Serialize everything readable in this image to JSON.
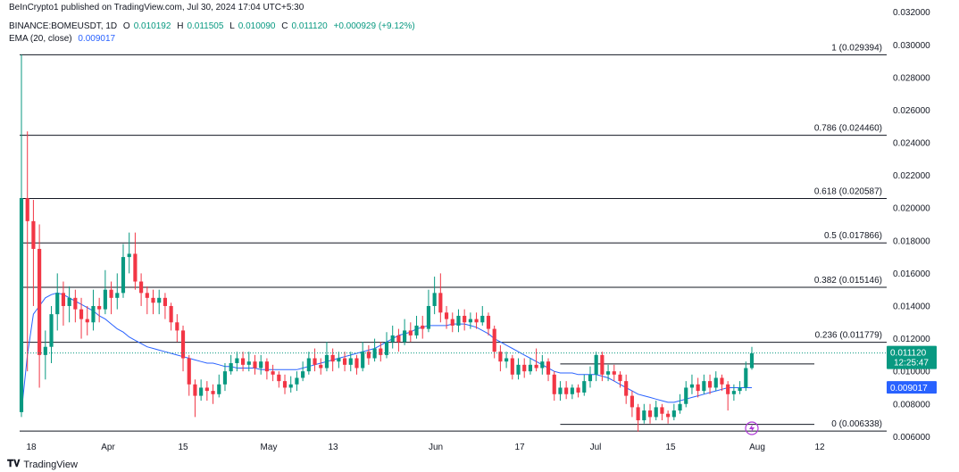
{
  "header": {
    "publisher": "BeInCrypto1 published on TradingView.com, Jul 30, 2024 17:04 UTC+5:30",
    "symbol": "BINANCE:BOMEUSDT, 1D",
    "open_label": "O",
    "open": "0.010192",
    "high_label": "H",
    "high": "0.011505",
    "low_label": "L",
    "low": "0.010090",
    "close_label": "C",
    "close": "0.011120",
    "change": "+0.000929 (+9.12%)",
    "ema_label": "EMA (20, close)",
    "ema_value": "0.009017"
  },
  "footer": {
    "brand": "TradingView"
  },
  "colors": {
    "up": "#089981",
    "down": "#f23645",
    "ema": "#2962ff",
    "line": "#131722",
    "price_tag": "#089981"
  },
  "chart_data": {
    "type": "candlestick",
    "ylim": [
      0.0058,
      0.0322
    ],
    "y_ticks": [
      "0.032000",
      "0.030000",
      "0.028000",
      "0.026000",
      "0.024000",
      "0.022000",
      "0.020000",
      "0.018000",
      "0.016000",
      "0.014000",
      "0.012000",
      "0.010000",
      "0.008000",
      "0.006000"
    ],
    "x_ticks": [
      "18",
      "Apr",
      "15",
      "May",
      "13",
      "Jun",
      "17",
      "Jul",
      "15",
      "Aug",
      "12"
    ],
    "fib_levels": [
      {
        "label": "1 (0.029394)",
        "value": 0.029394
      },
      {
        "label": "0.786 (0.024460)",
        "value": 0.02446
      },
      {
        "label": "0.618 (0.020587)",
        "value": 0.020587
      },
      {
        "label": "0.5 (0.017866)",
        "value": 0.017866
      },
      {
        "label": "0.382 (0.015146)",
        "value": 0.015146
      },
      {
        "label": "0.236 (0.011779)",
        "value": 0.011779
      },
      {
        "label": "0 (0.006338)",
        "value": 0.006338
      }
    ],
    "support_lines": [
      0.01045,
      0.00675
    ],
    "last_price": "0.011120",
    "countdown": "12:25:47",
    "ema_last": "0.009017",
    "candles": [
      [
        0.0075,
        0.0206,
        0.0294,
        0.0072
      ],
      [
        0.0206,
        0.0192,
        0.0247,
        0.01
      ],
      [
        0.0192,
        0.0175,
        0.0205,
        0.014
      ],
      [
        0.0175,
        0.011,
        0.019,
        0.009
      ],
      [
        0.011,
        0.0115,
        0.0125,
        0.0095
      ],
      [
        0.0115,
        0.0135,
        0.014,
        0.0105
      ],
      [
        0.0135,
        0.0148,
        0.016,
        0.0125
      ],
      [
        0.0148,
        0.014,
        0.0155,
        0.0128
      ],
      [
        0.014,
        0.0145,
        0.0152,
        0.013
      ],
      [
        0.0145,
        0.0138,
        0.015,
        0.013
      ],
      [
        0.0138,
        0.0132,
        0.0145,
        0.012
      ],
      [
        0.0132,
        0.013,
        0.014,
        0.0122
      ],
      [
        0.013,
        0.014,
        0.015,
        0.0125
      ],
      [
        0.014,
        0.0138,
        0.0145,
        0.013
      ],
      [
        0.0138,
        0.015,
        0.0162,
        0.0135
      ],
      [
        0.015,
        0.0145,
        0.0155,
        0.0135
      ],
      [
        0.0145,
        0.0148,
        0.016,
        0.0138
      ],
      [
        0.0148,
        0.017,
        0.0178,
        0.0145
      ],
      [
        0.017,
        0.0172,
        0.0185,
        0.016
      ],
      [
        0.0172,
        0.0155,
        0.0185,
        0.015
      ],
      [
        0.0155,
        0.0148,
        0.016,
        0.014
      ],
      [
        0.0148,
        0.0145,
        0.0152,
        0.0135
      ],
      [
        0.0145,
        0.0142,
        0.015,
        0.0135
      ],
      [
        0.0142,
        0.0145,
        0.015,
        0.0135
      ],
      [
        0.0145,
        0.014,
        0.0148,
        0.0132
      ],
      [
        0.014,
        0.013,
        0.0142,
        0.0125
      ],
      [
        0.013,
        0.0125,
        0.0135,
        0.0118
      ],
      [
        0.0125,
        0.0108,
        0.0128,
        0.01
      ],
      [
        0.0108,
        0.0092,
        0.011,
        0.0085
      ],
      [
        0.0092,
        0.0085,
        0.0095,
        0.0072
      ],
      [
        0.0085,
        0.009,
        0.0095,
        0.0082
      ],
      [
        0.009,
        0.0088,
        0.0094,
        0.0082
      ],
      [
        0.0088,
        0.0086,
        0.0092,
        0.008
      ],
      [
        0.0086,
        0.0092,
        0.0098,
        0.0084
      ],
      [
        0.0092,
        0.01,
        0.0105,
        0.0088
      ],
      [
        0.01,
        0.0105,
        0.011,
        0.0098
      ],
      [
        0.0105,
        0.0108,
        0.0112,
        0.01
      ],
      [
        0.0108,
        0.0104,
        0.0112,
        0.01
      ],
      [
        0.0104,
        0.0106,
        0.0112,
        0.01
      ],
      [
        0.0106,
        0.0102,
        0.011,
        0.0098
      ],
      [
        0.0102,
        0.0106,
        0.011,
        0.0098
      ],
      [
        0.0106,
        0.01,
        0.0108,
        0.0095
      ],
      [
        0.01,
        0.0098,
        0.0104,
        0.0094
      ],
      [
        0.0098,
        0.0094,
        0.01,
        0.009
      ],
      [
        0.0094,
        0.009,
        0.0098,
        0.0086
      ],
      [
        0.009,
        0.0092,
        0.0097,
        0.0087
      ],
      [
        0.0092,
        0.0096,
        0.01,
        0.0088
      ],
      [
        0.0096,
        0.01,
        0.0106,
        0.0094
      ],
      [
        0.01,
        0.0108,
        0.0112,
        0.0098
      ],
      [
        0.0108,
        0.0104,
        0.0114,
        0.01
      ],
      [
        0.0104,
        0.0102,
        0.0108,
        0.0098
      ],
      [
        0.0102,
        0.011,
        0.0118,
        0.01
      ],
      [
        0.011,
        0.0106,
        0.0114,
        0.01
      ],
      [
        0.0106,
        0.0108,
        0.0112,
        0.0102
      ],
      [
        0.0108,
        0.0104,
        0.0112,
        0.01
      ],
      [
        0.0104,
        0.0108,
        0.0112,
        0.01
      ],
      [
        0.0108,
        0.0102,
        0.011,
        0.0098
      ],
      [
        0.0102,
        0.0112,
        0.0118,
        0.01
      ],
      [
        0.0112,
        0.0108,
        0.0116,
        0.0104
      ],
      [
        0.0108,
        0.0114,
        0.012,
        0.0106
      ],
      [
        0.0114,
        0.011,
        0.0118,
        0.0106
      ],
      [
        0.011,
        0.0118,
        0.0124,
        0.0108
      ],
      [
        0.0118,
        0.0122,
        0.0128,
        0.0114
      ],
      [
        0.0122,
        0.0118,
        0.0126,
        0.0112
      ],
      [
        0.0118,
        0.0125,
        0.0132,
        0.0116
      ],
      [
        0.0125,
        0.0122,
        0.013,
        0.0118
      ],
      [
        0.0122,
        0.0128,
        0.0134,
        0.012
      ],
      [
        0.0128,
        0.0126,
        0.0134,
        0.012
      ],
      [
        0.0126,
        0.014,
        0.015,
        0.0124
      ],
      [
        0.014,
        0.0148,
        0.0158,
        0.0135
      ],
      [
        0.0148,
        0.0136,
        0.016,
        0.013
      ],
      [
        0.0136,
        0.0132,
        0.014,
        0.0126
      ],
      [
        0.0132,
        0.0128,
        0.0136,
        0.0124
      ],
      [
        0.0128,
        0.0134,
        0.0138,
        0.0124
      ],
      [
        0.0134,
        0.013,
        0.0138,
        0.0125
      ],
      [
        0.013,
        0.0132,
        0.0136,
        0.0126
      ],
      [
        0.0132,
        0.013,
        0.0136,
        0.0126
      ],
      [
        0.013,
        0.0134,
        0.014,
        0.0128
      ],
      [
        0.0134,
        0.0126,
        0.0136,
        0.0122
      ],
      [
        0.0126,
        0.0112,
        0.0128,
        0.0108
      ],
      [
        0.0112,
        0.0106,
        0.0116,
        0.01
      ],
      [
        0.0106,
        0.0108,
        0.0112,
        0.0102
      ],
      [
        0.0108,
        0.0098,
        0.011,
        0.0095
      ],
      [
        0.0098,
        0.0104,
        0.0108,
        0.0095
      ],
      [
        0.0104,
        0.01,
        0.0108,
        0.0096
      ],
      [
        0.01,
        0.0104,
        0.0108,
        0.0098
      ],
      [
        0.0104,
        0.0102,
        0.0114,
        0.01
      ],
      [
        0.0102,
        0.0106,
        0.011,
        0.0098
      ],
      [
        0.0106,
        0.0098,
        0.0108,
        0.0094
      ],
      [
        0.0098,
        0.0086,
        0.01,
        0.0082
      ],
      [
        0.0086,
        0.009,
        0.0094,
        0.0082
      ],
      [
        0.009,
        0.0086,
        0.0094,
        0.0083
      ],
      [
        0.0086,
        0.009,
        0.0092,
        0.0083
      ],
      [
        0.009,
        0.0087,
        0.0092,
        0.0084
      ],
      [
        0.0087,
        0.0094,
        0.0098,
        0.0085
      ],
      [
        0.0094,
        0.0098,
        0.0103,
        0.009
      ],
      [
        0.0098,
        0.011,
        0.0112,
        0.0094
      ],
      [
        0.011,
        0.0098,
        0.0112,
        0.0094
      ],
      [
        0.0098,
        0.01,
        0.0104,
        0.0094
      ],
      [
        0.01,
        0.0098,
        0.0104,
        0.0094
      ],
      [
        0.0098,
        0.0094,
        0.01,
        0.009
      ],
      [
        0.0094,
        0.0085,
        0.0098,
        0.008
      ],
      [
        0.0085,
        0.0078,
        0.0088,
        0.0072
      ],
      [
        0.0078,
        0.007,
        0.008,
        0.0063
      ],
      [
        0.007,
        0.0076,
        0.008,
        0.0068
      ],
      [
        0.0076,
        0.0072,
        0.008,
        0.0068
      ],
      [
        0.0072,
        0.0078,
        0.0082,
        0.007
      ],
      [
        0.0078,
        0.0074,
        0.008,
        0.007
      ],
      [
        0.0074,
        0.0072,
        0.0076,
        0.0068
      ],
      [
        0.0072,
        0.0076,
        0.008,
        0.007
      ],
      [
        0.0076,
        0.008,
        0.0086,
        0.0074
      ],
      [
        0.008,
        0.009,
        0.0094,
        0.0078
      ],
      [
        0.009,
        0.0092,
        0.0098,
        0.0086
      ],
      [
        0.0092,
        0.0088,
        0.0096,
        0.0084
      ],
      [
        0.0088,
        0.0094,
        0.0098,
        0.0086
      ],
      [
        0.0094,
        0.009,
        0.0098,
        0.0086
      ],
      [
        0.009,
        0.0096,
        0.01,
        0.0088
      ],
      [
        0.0096,
        0.0092,
        0.0098,
        0.0088
      ],
      [
        0.0092,
        0.0086,
        0.0094,
        0.0076
      ],
      [
        0.0086,
        0.0088,
        0.0092,
        0.0082
      ],
      [
        0.0088,
        0.009,
        0.0094,
        0.0086
      ],
      [
        0.009,
        0.0102,
        0.0106,
        0.0088
      ],
      [
        0.0102,
        0.0111,
        0.0115,
        0.0101
      ]
    ],
    "ema": [
      0.0075,
      0.011,
      0.0135,
      0.014,
      0.0145,
      0.0147,
      0.0148,
      0.0147,
      0.0145,
      0.0143,
      0.0141,
      0.0139,
      0.0137,
      0.0134,
      0.0132,
      0.0129,
      0.0126,
      0.0124,
      0.0121,
      0.0119,
      0.0117,
      0.0115,
      0.0114,
      0.0113,
      0.0112,
      0.0111,
      0.011,
      0.0109,
      0.0108,
      0.0107,
      0.0106,
      0.0105,
      0.0105,
      0.0104,
      0.0103,
      0.0103,
      0.0102,
      0.0102,
      0.0102,
      0.0102,
      0.0101,
      0.0101,
      0.0101,
      0.0101,
      0.0101,
      0.0101,
      0.0101,
      0.0102,
      0.0103,
      0.0104,
      0.0105,
      0.0106,
      0.0107,
      0.0108,
      0.0109,
      0.011,
      0.0111,
      0.0112,
      0.0113,
      0.0114,
      0.0116,
      0.0118,
      0.012,
      0.0122,
      0.0123,
      0.0124,
      0.0126,
      0.0127,
      0.0128,
      0.0128,
      0.0128,
      0.0128,
      0.0129,
      0.0129,
      0.0129,
      0.0128,
      0.0127,
      0.0125,
      0.0123,
      0.012,
      0.0118,
      0.0116,
      0.0114,
      0.0112,
      0.011,
      0.0108,
      0.0106,
      0.0104,
      0.0102,
      0.01,
      0.0099,
      0.0099,
      0.0099,
      0.0098,
      0.0098,
      0.0098,
      0.0098,
      0.0097,
      0.0096,
      0.0094,
      0.0092,
      0.009,
      0.0088,
      0.0086,
      0.0085,
      0.0084,
      0.0083,
      0.0082,
      0.0081,
      0.0081,
      0.0082,
      0.0083,
      0.0084,
      0.0085,
      0.0086,
      0.0087,
      0.0088,
      0.0089,
      0.009,
      0.009,
      0.009,
      0.009,
      0.009
    ]
  }
}
